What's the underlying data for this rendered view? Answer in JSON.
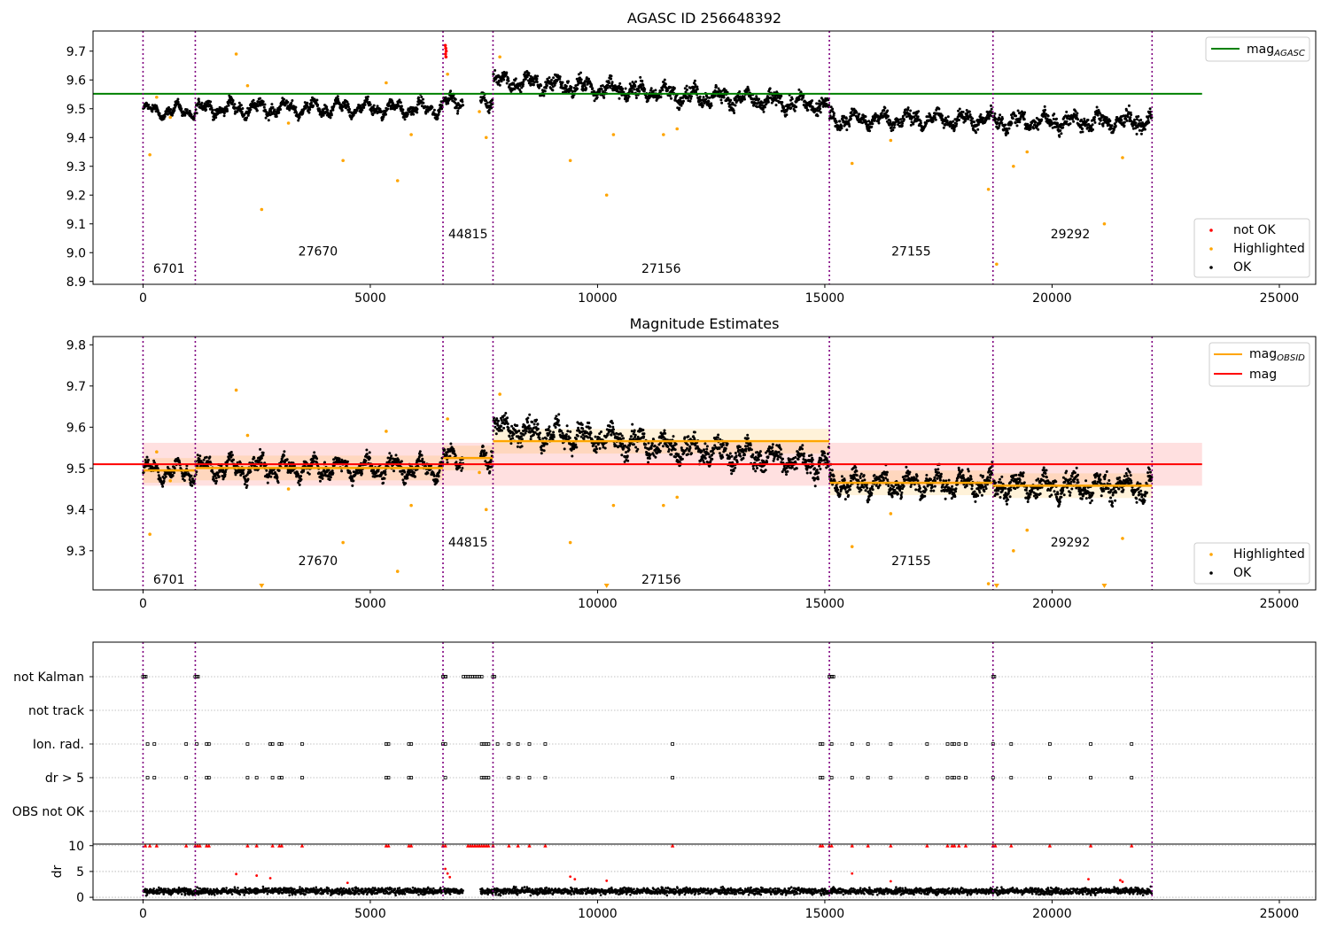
{
  "chart_data": [
    {
      "type": "scatter",
      "title": "AGASC ID 256648392",
      "xlim": [
        -1100,
        25800
      ],
      "ylim": [
        8.89,
        9.77
      ],
      "x_ticks": [
        0,
        5000,
        10000,
        15000,
        20000,
        25000
      ],
      "y_ticks": [
        8.9,
        9.0,
        9.1,
        9.2,
        9.3,
        9.4,
        9.5,
        9.6,
        9.7
      ],
      "y_tick_labels": [
        "8.9",
        "9.0",
        "9.1",
        "9.2",
        "9.3",
        "9.4",
        "9.5",
        "9.6",
        "9.7"
      ],
      "mag_agasc": 9.552,
      "legend_lines": [
        {
          "name": "mag",
          "sub": "AGASC",
          "color": "#008000"
        }
      ],
      "legend_points": [
        {
          "name": "not OK",
          "color": "#ff0000"
        },
        {
          "name": "Highlighted",
          "color": "#ffa500"
        },
        {
          "name": "OK",
          "color": "#000000"
        }
      ],
      "obsid_labels": [
        {
          "text": "6701",
          "x": 570,
          "y": 8.93
        },
        {
          "text": "27670",
          "x": 3850,
          "y": 8.99
        },
        {
          "text": "44815",
          "x": 7150,
          "y": 9.05
        },
        {
          "text": "27156",
          "x": 11400,
          "y": 8.93
        },
        {
          "text": "27155",
          "x": 16900,
          "y": 8.99
        },
        {
          "text": "29292",
          "x": 20400,
          "y": 9.05
        }
      ],
      "highlighted_points": [
        [
          150,
          9.34
        ],
        [
          300,
          9.54
        ],
        [
          600,
          9.47
        ],
        [
          2050,
          9.69
        ],
        [
          2300,
          9.58
        ],
        [
          2610,
          9.15
        ],
        [
          3200,
          9.45
        ],
        [
          4400,
          9.32
        ],
        [
          5350,
          9.59
        ],
        [
          5600,
          9.25
        ],
        [
          5900,
          9.41
        ],
        [
          6700,
          9.62
        ],
        [
          7400,
          9.49
        ],
        [
          7550,
          9.4
        ],
        [
          7850,
          9.68
        ],
        [
          9400,
          9.32
        ],
        [
          10200,
          9.2
        ],
        [
          10350,
          9.41
        ],
        [
          11450,
          9.41
        ],
        [
          11750,
          9.43
        ],
        [
          15600,
          9.31
        ],
        [
          16450,
          9.39
        ],
        [
          18600,
          9.22
        ],
        [
          18780,
          8.96
        ],
        [
          19150,
          9.3
        ],
        [
          19450,
          9.35
        ],
        [
          21150,
          9.1
        ],
        [
          21550,
          9.33
        ]
      ],
      "not_ok_points": [
        [
          6650,
          9.72
        ],
        [
          6660,
          9.71
        ],
        [
          6670,
          9.7
        ],
        [
          6655,
          9.69
        ],
        [
          6665,
          9.68
        ]
      ]
    },
    {
      "type": "scatter",
      "title": "Magnitude Estimates",
      "xlim": [
        -1100,
        25800
      ],
      "ylim": [
        9.205,
        9.82
      ],
      "x_ticks": [
        0,
        5000,
        10000,
        15000,
        20000,
        25000
      ],
      "y_ticks": [
        9.3,
        9.4,
        9.5,
        9.6,
        9.7,
        9.8
      ],
      "y_tick_labels": [
        "9.3",
        "9.4",
        "9.5",
        "9.6",
        "9.7",
        "9.8"
      ],
      "mag": 9.51,
      "mag_band": [
        9.458,
        9.562
      ],
      "mag_obsid_segments": [
        {
          "x0": 0,
          "x1": 1150,
          "mag": 9.495
        },
        {
          "x0": 1150,
          "x1": 6600,
          "mag": 9.501
        },
        {
          "x0": 6600,
          "x1": 7700,
          "mag": 9.525
        },
        {
          "x0": 7700,
          "x1": 15100,
          "mag": 9.566
        },
        {
          "x0": 15100,
          "x1": 18700,
          "mag": 9.465
        },
        {
          "x0": 18700,
          "x1": 22200,
          "mag": 9.458
        }
      ],
      "legend_lines": [
        {
          "name": "mag",
          "sub": "OBSID",
          "color": "#ffa500"
        },
        {
          "name": "mag",
          "sub": "",
          "color": "#ff0000"
        }
      ],
      "legend_points": [
        {
          "name": "Highlighted",
          "color": "#ffa500"
        },
        {
          "name": "OK",
          "color": "#000000"
        }
      ],
      "obsid_labels": [
        {
          "text": "6701",
          "x": 570,
          "y": 9.22
        },
        {
          "text": "27670",
          "x": 3850,
          "y": 9.265
        },
        {
          "text": "44815",
          "x": 7150,
          "y": 9.31
        },
        {
          "text": "27156",
          "x": 11400,
          "y": 9.22
        },
        {
          "text": "27155",
          "x": 16900,
          "y": 9.265
        },
        {
          "text": "29292",
          "x": 20400,
          "y": 9.31
        }
      ]
    },
    {
      "type": "scatter",
      "title": "",
      "xlim": [
        -1100,
        25800
      ],
      "category_labels": [
        "not Kalman",
        "not track",
        "Ion. rad.",
        "dr > 5",
        "OBS not OK"
      ],
      "dr_ylim": [
        -0.5,
        10.3
      ],
      "dr_ticks": [
        0,
        5,
        10
      ],
      "dr_tick_labels": [
        "0",
        "5",
        "10"
      ],
      "dr_ylabel": "dr",
      "flag_times": {
        "not Kalman": [
          0,
          30,
          60,
          1150,
          1180,
          1210,
          6600,
          6630,
          6660,
          7050,
          7100,
          7150,
          7200,
          7250,
          7300,
          7350,
          7400,
          7450,
          7700,
          7730,
          15100,
          15130,
          15160,
          15190,
          18700,
          18730
        ],
        "Ion. rad.": [
          100,
          250,
          950,
          1180,
          1400,
          1450,
          2300,
          2800,
          2850,
          3000,
          3050,
          3500,
          5350,
          5400,
          5850,
          5900,
          6600,
          6650,
          7450,
          7500,
          7550,
          7600,
          7800,
          8050,
          8250,
          8500,
          8850,
          11650,
          14900,
          14950,
          15150,
          15600,
          15950,
          16450,
          17250,
          17700,
          17800,
          17850,
          17950,
          18100,
          18700,
          19100,
          19950,
          20850,
          21750
        ],
        "dr > 5": [
          100,
          250,
          950,
          1400,
          1450,
          2300,
          2500,
          2850,
          3000,
          3050,
          3500,
          5350,
          5400,
          5850,
          5900,
          6650,
          7450,
          7500,
          7550,
          7600,
          8050,
          8250,
          8500,
          8850,
          11650,
          14900,
          14950,
          15150,
          15600,
          15950,
          16450,
          17250,
          17700,
          17800,
          17850,
          17950,
          18100,
          18700,
          19100,
          19950,
          20850,
          21750
        ]
      },
      "dr_flag_times": [
        50,
        150,
        300,
        950,
        1150,
        1200,
        1250,
        1400,
        1450,
        2300,
        2500,
        2850,
        3000,
        3050,
        3500,
        5350,
        5400,
        5850,
        5900,
        6600,
        6650,
        7150,
        7200,
        7250,
        7300,
        7350,
        7400,
        7450,
        7500,
        7550,
        7600,
        7700,
        8050,
        8250,
        8500,
        8850,
        11650,
        14900,
        14950,
        15100,
        15150,
        15600,
        15950,
        16450,
        17250,
        17700,
        17800,
        17850,
        17950,
        18100,
        18700,
        18750,
        19100,
        19950,
        20850,
        21750
      ],
      "dr_red_points": [
        [
          2050,
          4.5
        ],
        [
          2500,
          4.2
        ],
        [
          2800,
          3.7
        ],
        [
          4500,
          2.8
        ],
        [
          6650,
          5.5
        ],
        [
          6700,
          4.6
        ],
        [
          6750,
          3.9
        ],
        [
          9400,
          4.0
        ],
        [
          9500,
          3.5
        ],
        [
          10200,
          3.2
        ],
        [
          15600,
          4.6
        ],
        [
          16450,
          3.1
        ],
        [
          20800,
          3.5
        ],
        [
          21500,
          3.3
        ],
        [
          21550,
          3.0
        ]
      ]
    }
  ],
  "obs_boundaries": [
    0,
    1150,
    6600,
    7700,
    15100,
    18700,
    22200
  ]
}
